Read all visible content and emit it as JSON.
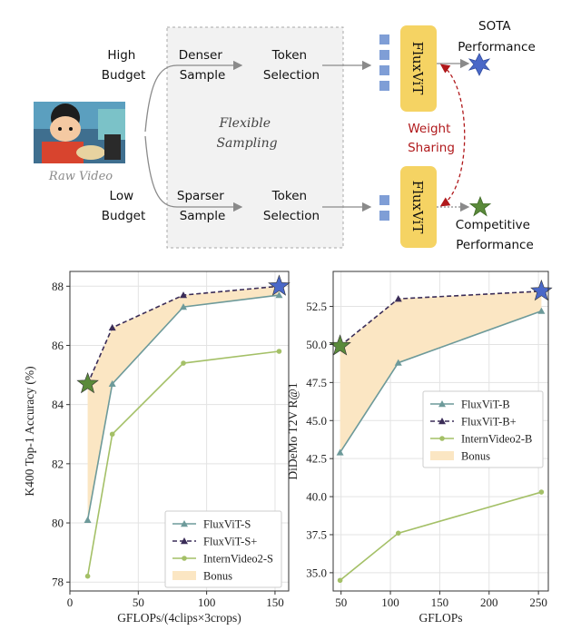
{
  "diagram": {
    "high_budget": [
      "High",
      "Budget"
    ],
    "low_budget": [
      "Low",
      "Budget"
    ],
    "raw_video": "Raw Video",
    "denser_sample": [
      "Denser",
      "Sample"
    ],
    "sparser_sample": [
      "Sparser",
      "Sample"
    ],
    "token_selection": [
      "Token",
      "Selection"
    ],
    "flexible_sampling": [
      "Flexible",
      "Sampling"
    ],
    "model_name": "FluxViT",
    "weight_sharing": [
      "Weight",
      "Sharing"
    ],
    "sota_performance": [
      "SOTA",
      "Performance"
    ],
    "competitive_performance": [
      "Competitive",
      "Performance"
    ],
    "colors": {
      "model_box": "#f5d363",
      "token": "#7f9ed6",
      "sota_star": "#4a68c8",
      "competitive_star": "#5a8a3a",
      "weight_sharing": "#b0181b",
      "panel": "#f2f2f2"
    }
  },
  "chart_data": [
    {
      "type": "line",
      "xlabel": "GFLOPs/(4clips×3crops)",
      "ylabel": "K400 Top-1 Accuracy (%)",
      "xlim": [
        0,
        160
      ],
      "ylim": [
        77.7,
        88.5
      ],
      "xticks": [
        0,
        50,
        100,
        150
      ],
      "yticks": [
        78,
        80,
        82,
        84,
        86,
        88
      ],
      "series": [
        {
          "name": "FluxViT-S",
          "x": [
            13,
            31,
            83,
            153
          ],
          "y": [
            80.1,
            84.7,
            87.3,
            87.7
          ],
          "color": "#6d9a9a",
          "marker": "triangle"
        },
        {
          "name": "FluxViT-S+",
          "x": [
            13,
            31,
            83,
            153
          ],
          "y": [
            84.7,
            86.6,
            87.7,
            88.0
          ],
          "color": "#3b2d58",
          "marker": "triangle",
          "dashed": true
        },
        {
          "name": "InternVideo2-S",
          "x": [
            13,
            31,
            83,
            153
          ],
          "y": [
            78.2,
            83.0,
            85.4,
            85.8
          ],
          "color": "#a4c067",
          "marker": "circle"
        }
      ],
      "bonus": {
        "name": "Bonus",
        "color": "#fbe6c3"
      },
      "stars": [
        {
          "x": 13,
          "y": 84.7,
          "color": "#5a8a3a"
        },
        {
          "x": 153,
          "y": 88.0,
          "color": "#4a68c8"
        }
      ],
      "legend": "bottom-right"
    },
    {
      "type": "line",
      "xlabel": "GFLOPs",
      "ylabel": "DiDeMo    T2V    R@1",
      "xlim": [
        42,
        260
      ],
      "ylim": [
        33.8,
        54.8
      ],
      "xticks": [
        50,
        100,
        150,
        200,
        250
      ],
      "yticks": [
        35.0,
        37.5,
        40.0,
        42.5,
        45.0,
        47.5,
        50.0,
        52.5
      ],
      "series": [
        {
          "name": "FluxViT-B",
          "x": [
            49,
            108,
            253
          ],
          "y": [
            42.9,
            48.8,
            52.2
          ],
          "color": "#6d9a9a",
          "marker": "triangle"
        },
        {
          "name": "FluxViT-B+",
          "x": [
            49,
            108,
            253
          ],
          "y": [
            49.9,
            53.0,
            53.5
          ],
          "color": "#3b2d58",
          "marker": "triangle",
          "dashed": true
        },
        {
          "name": "InternVideo2-B",
          "x": [
            49,
            108,
            253
          ],
          "y": [
            34.5,
            37.6,
            40.3
          ],
          "color": "#a4c067",
          "marker": "circle"
        }
      ],
      "bonus": {
        "name": "Bonus",
        "color": "#fbe6c3"
      },
      "stars": [
        {
          "x": 49,
          "y": 49.9,
          "color": "#5a8a3a"
        },
        {
          "x": 253,
          "y": 53.5,
          "color": "#4a68c8"
        }
      ],
      "legend": "center-right"
    }
  ]
}
